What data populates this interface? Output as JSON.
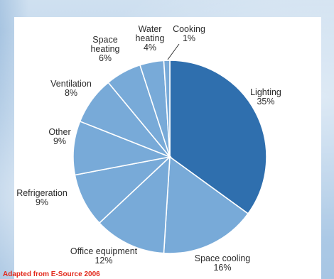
{
  "chart_data": {
    "type": "pie",
    "title": "",
    "categories": [
      "Lighting",
      "Space cooling",
      "Office equipment",
      "Refrigeration",
      "Other",
      "Ventilation",
      "Space heating",
      "Water heating",
      "Cooking"
    ],
    "values": [
      35,
      16,
      12,
      9,
      9,
      8,
      6,
      4,
      1
    ],
    "value_labels": [
      "35%",
      "16%",
      "12%",
      "9%",
      "9%",
      "8%",
      "6%",
      "4%",
      "1%"
    ],
    "label_lines": [
      [
        "Lighting",
        "35%"
      ],
      [
        "Space cooling",
        "16%"
      ],
      [
        "Office equipment",
        "12%"
      ],
      [
        "Refrigeration",
        "9%"
      ],
      [
        "Other",
        "9%"
      ],
      [
        "Ventilation",
        "8%"
      ],
      [
        "Space",
        "heating",
        "6%"
      ],
      [
        "Water",
        "heating",
        "4%"
      ],
      [
        "Cooking",
        "1%"
      ]
    ],
    "colors": [
      "#2f6fae",
      "#78aad8",
      "#78aad8",
      "#78aad8",
      "#78aad8",
      "#78aad8",
      "#78aad8",
      "#78aad8",
      "#78aad8"
    ],
    "start_angle_deg": 0,
    "direction": "clockwise"
  },
  "source_note": "Adapted from E-Source 2006"
}
